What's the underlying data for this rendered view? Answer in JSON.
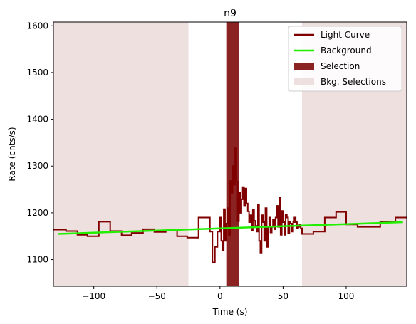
{
  "chart_data": {
    "type": "line",
    "title": "n9",
    "xlabel": "Time (s)",
    "ylabel": "Rate (cnts/s)",
    "xlim": [
      -132,
      148
    ],
    "ylim": [
      1043,
      1608
    ],
    "xticks": [
      -100,
      -50,
      0,
      50,
      100
    ],
    "xtick_labels": [
      "−100",
      "−50",
      "0",
      "50",
      "100"
    ],
    "yticks": [
      1100,
      1200,
      1300,
      1400,
      1500,
      1600
    ],
    "ytick_labels": [
      "1100",
      "1200",
      "1300",
      "1400",
      "1500",
      "1600"
    ],
    "grid": false,
    "legend_position": "top-right",
    "legend": [
      {
        "label": "Light Curve",
        "kind": "line",
        "color": "#800000"
      },
      {
        "label": "Background",
        "kind": "line",
        "color": "#22ee00"
      },
      {
        "label": "Selection",
        "kind": "patch",
        "color": "#8b2323"
      },
      {
        "label": "Bkg. Selections",
        "kind": "patch",
        "color": "#efe0e0"
      }
    ],
    "colors": {
      "light_curve": "#800000",
      "background": "#22ee00",
      "selection": "#8b2323",
      "bkg_selection": "#efe0e0"
    },
    "light_curve": {
      "name": "Light Curve",
      "step_edges": [
        -132,
        -122,
        -113,
        -105,
        -96,
        -87,
        -78,
        -70,
        -61,
        -52,
        -43,
        -34,
        -26,
        -17,
        -8,
        -6,
        -4,
        -2,
        0,
        1,
        2,
        3,
        4,
        5,
        6,
        7,
        8,
        9,
        10,
        11,
        12,
        13,
        14,
        15,
        16,
        17,
        18,
        19,
        20,
        21,
        22,
        23,
        24,
        25,
        26,
        27,
        28,
        29,
        30,
        31,
        32,
        33,
        34,
        35,
        36,
        37,
        38,
        39,
        40,
        41,
        42,
        43,
        44,
        45,
        46,
        47,
        48,
        49,
        50,
        51,
        52,
        53,
        54,
        55,
        56,
        57,
        58,
        59,
        60,
        61,
        62,
        63,
        64,
        65,
        74,
        83,
        92,
        100,
        109,
        118,
        127,
        139,
        148
      ],
      "step_values": [
        1164,
        1161,
        1153,
        1150,
        1181,
        1161,
        1152,
        1157,
        1165,
        1159,
        1162,
        1150,
        1147,
        1190,
        1160,
        1094,
        1127,
        1160,
        1190,
        1140,
        1120,
        1208,
        1140,
        1177,
        1210,
        1153,
        1268,
        1243,
        1300,
        1260,
        1338,
        1267,
        1182,
        1243,
        1200,
        1229,
        1255,
        1216,
        1252,
        1220,
        1203,
        1180,
        1195,
        1163,
        1207,
        1183,
        1172,
        1160,
        1217,
        1140,
        1115,
        1195,
        1180,
        1140,
        1210,
        1127,
        1170,
        1190,
        1158,
        1170,
        1185,
        1165,
        1190,
        1215,
        1170,
        1232,
        1153,
        1204,
        1180,
        1153,
        1196,
        1190,
        1157,
        1180,
        1177,
        1160,
        1180,
        1190,
        1180,
        1167,
        1170,
        1175,
        1167,
        1155,
        1160,
        1190,
        1202,
        1175,
        1170,
        1170,
        1180,
        1190,
        1190
      ]
    },
    "background": {
      "name": "Background",
      "x": [
        -128,
        145
      ],
      "y": [
        1155,
        1180
      ]
    },
    "selection": {
      "name": "Selection",
      "x_range": [
        5,
        15
      ]
    },
    "bkg_selections": [
      {
        "x_range": [
          -132,
          -25
        ]
      },
      {
        "x_range": [
          65,
          148
        ]
      }
    ]
  }
}
